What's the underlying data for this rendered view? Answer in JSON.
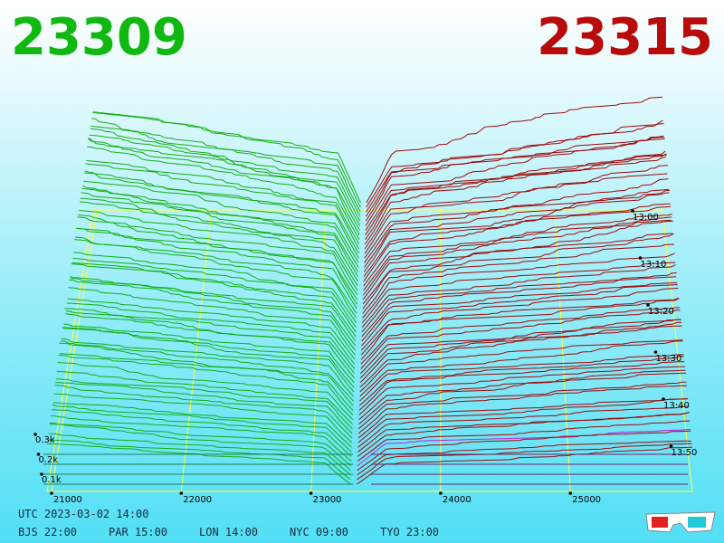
{
  "header": {
    "bid_price": "23309",
    "ask_price": "23315"
  },
  "price_axis": {
    "labels": [
      "21000",
      "22000",
      "23000",
      "24000",
      "25000"
    ]
  },
  "depth_axis": {
    "labels": [
      "0.1k",
      "0.2k",
      "0.3k"
    ]
  },
  "time_axis": {
    "labels": [
      "13:00",
      "13:10",
      "13:20",
      "13:30",
      "13:40",
      "13:50"
    ]
  },
  "footer": {
    "utc": "UTC 2023-03-02 14:00",
    "cities": [
      "BJS 22:00",
      "PAR 15:00",
      "LON 14:00",
      "NYC 09:00",
      "TYO 23:00"
    ]
  }
}
